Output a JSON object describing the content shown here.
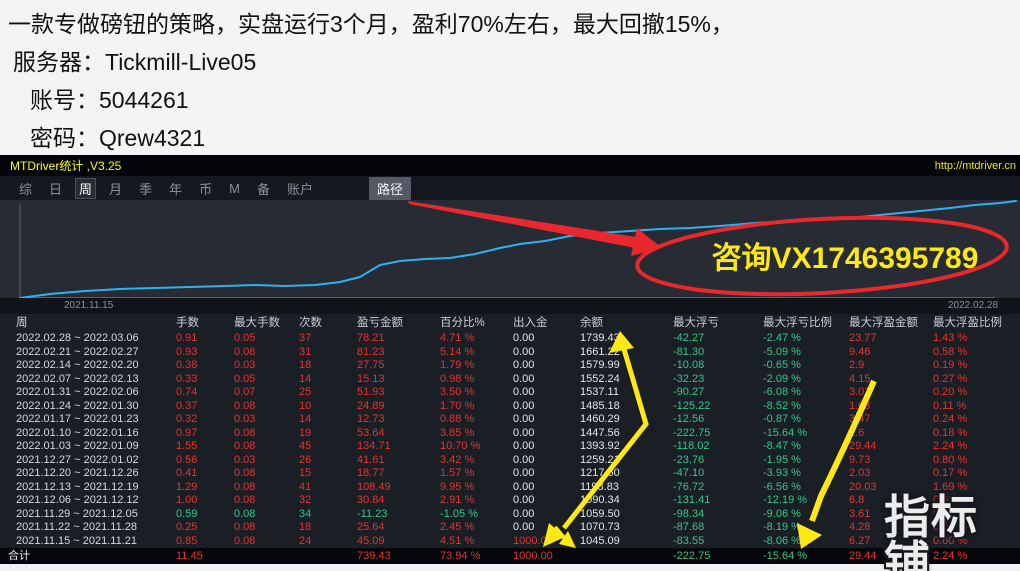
{
  "note": {
    "lines": [
      "一款专做磅钮的策略，实盘运行3个月，盈利70%左右，最大回撤15%，",
      "服务器：Tickmill-Live05",
      "账号：5044261",
      "密码：Qrew4321"
    ]
  },
  "titlebar": {
    "title": "MTDriver统计 ,V3.25",
    "url": "http://mtdriver.cn"
  },
  "menu": {
    "items": [
      "综",
      "日",
      "周",
      "月",
      "季",
      "年",
      "币",
      "M",
      "备",
      "账户"
    ],
    "selected": "周",
    "path_button": "路径"
  },
  "chart": {
    "type": "line",
    "start_date": "2021.11.15",
    "end_date": "2022.02.28",
    "annotation": "咨询VX1746395789",
    "curve_points": [
      [
        20,
        98
      ],
      [
        50,
        94
      ],
      [
        85,
        91
      ],
      [
        120,
        89
      ],
      [
        155,
        88
      ],
      [
        190,
        87
      ],
      [
        225,
        86
      ],
      [
        255,
        85
      ],
      [
        285,
        86
      ],
      [
        315,
        85
      ],
      [
        340,
        82
      ],
      [
        360,
        77
      ],
      [
        380,
        65
      ],
      [
        400,
        61
      ],
      [
        425,
        59
      ],
      [
        450,
        58
      ],
      [
        475,
        54
      ],
      [
        500,
        48
      ],
      [
        520,
        44
      ],
      [
        545,
        41
      ],
      [
        570,
        36
      ],
      [
        600,
        33
      ],
      [
        630,
        31
      ],
      [
        660,
        29
      ],
      [
        690,
        28
      ],
      [
        720,
        26
      ],
      [
        755,
        23
      ],
      [
        790,
        21
      ],
      [
        825,
        19
      ],
      [
        860,
        17
      ],
      [
        890,
        14
      ],
      [
        920,
        11
      ],
      [
        950,
        8
      ],
      [
        975,
        5
      ],
      [
        1000,
        3
      ],
      [
        1016,
        1
      ]
    ]
  },
  "table": {
    "headers": [
      "周",
      "手数",
      "最大手数",
      "次数",
      "盈亏金额",
      "百分比%",
      "出入金",
      "余额",
      "最大浮亏",
      "最大浮亏比例",
      "最大浮盈金额",
      "最大浮盈比例"
    ],
    "rows": [
      {
        "period": "2022.02.28 ~ 2022.03.06",
        "loss": false,
        "values": [
          "0.91",
          "0.05",
          "37",
          "78.21",
          "4.71 %",
          "0.00",
          "1739.43",
          "-42.27",
          "-2.47 %",
          "23.77",
          "1.43 %"
        ]
      },
      {
        "period": "2022.02.21 ~ 2022.02.27",
        "loss": false,
        "values": [
          "0.93",
          "0.08",
          "31",
          "81.23",
          "5.14 %",
          "0.00",
          "1661.22",
          "-81.30",
          "-5.09 %",
          "9.46",
          "0.58 %"
        ]
      },
      {
        "period": "2022.02.14 ~ 2022.02.20",
        "loss": false,
        "values": [
          "0.38",
          "0.03",
          "18",
          "27.75",
          "1.79 %",
          "0.00",
          "1579.99",
          "-10.08",
          "-0.65 %",
          "2.9",
          "0.19 %"
        ]
      },
      {
        "period": "2022.02.07 ~ 2022.02.13",
        "loss": false,
        "values": [
          "0.33",
          "0.05",
          "14",
          "15.13",
          "0.98 %",
          "0.00",
          "1552.24",
          "-32.23",
          "-2.09 %",
          "4.15",
          "0.27 %"
        ]
      },
      {
        "period": "2022.01.31 ~ 2022.02.06",
        "loss": false,
        "values": [
          "0.74",
          "0.07",
          "25",
          "51.93",
          "3.50 %",
          "0.00",
          "1537.11",
          "-90.27",
          "-6.08 %",
          "3.01",
          "0.20 %"
        ]
      },
      {
        "period": "2022.01.24 ~ 2022.01.30",
        "loss": false,
        "values": [
          "0.37",
          "0.08",
          "10",
          "24.89",
          "1.70 %",
          "0.00",
          "1485.18",
          "-125.22",
          "-8.52 %",
          "1.63",
          "0.11 %"
        ]
      },
      {
        "period": "2022.01.17 ~ 2022.01.23",
        "loss": false,
        "values": [
          "0.32",
          "0.03",
          "14",
          "12.73",
          "0.88 %",
          "0.00",
          "1460.29",
          "-12.56",
          "-0.87 %",
          "3.47",
          "0.24 %"
        ]
      },
      {
        "period": "2022.01.10 ~ 2022.01.16",
        "loss": false,
        "values": [
          "0.97",
          "0.08",
          "19",
          "53.64",
          "3.85 %",
          "0.00",
          "1447.56",
          "-222.75",
          "-15.64 %",
          "2.6",
          "0.18 %"
        ]
      },
      {
        "period": "2022.01.03 ~ 2022.01.09",
        "loss": false,
        "values": [
          "1.55",
          "0.08",
          "45",
          "134.71",
          "10.70 %",
          "0.00",
          "1393.92",
          "-118.02",
          "-8.47 %",
          "29.44",
          "2.24 %"
        ]
      },
      {
        "period": "2021.12.27 ~ 2022.01.02",
        "loss": false,
        "values": [
          "0.56",
          "0.03",
          "26",
          "41.61",
          "3.42 %",
          "0.00",
          "1259.21",
          "-23.76",
          "-1.95 %",
          "9.73",
          "0.80 %"
        ]
      },
      {
        "period": "2021.12.20 ~ 2021.12.26",
        "loss": false,
        "values": [
          "0.41",
          "0.08",
          "15",
          "18.77",
          "1.57 %",
          "0.00",
          "1217.60",
          "-47.10",
          "-3.93 %",
          "2.03",
          "0.17 %"
        ]
      },
      {
        "period": "2021.12.13 ~ 2021.12.19",
        "loss": false,
        "values": [
          "1.29",
          "0.08",
          "41",
          "108.49",
          "9.95 %",
          "0.00",
          "1198.83",
          "-76.72",
          "-6.56 %",
          "20.03",
          "1.69 %"
        ]
      },
      {
        "period": "2021.12.06 ~ 2021.12.12",
        "loss": false,
        "values": [
          "1.00",
          "0.08",
          "32",
          "30.84",
          "2.91 %",
          "0.00",
          "1090.34",
          "-131.41",
          "-12.19 %",
          "6.8",
          "0.63 %"
        ]
      },
      {
        "period": "2021.11.29 ~ 2021.12.05",
        "loss": true,
        "values": [
          "0.59",
          "0.08",
          "34",
          "-11.23",
          "-1.05 %",
          "0.00",
          "1059.50",
          "-98.34",
          "-9.06 %",
          "3.61",
          "0.35 %"
        ]
      },
      {
        "period": "2021.11.22 ~ 2021.11.28",
        "loss": false,
        "values": [
          "0.25",
          "0.08",
          "18",
          "25.64",
          "2.45 %",
          "0.00",
          "1070.73",
          "-87.68",
          "-8.19 %",
          "4.28",
          "0.41 %"
        ]
      },
      {
        "period": "2021.11.15 ~ 2021.11.21",
        "loss": false,
        "values": [
          "0.85",
          "0.08",
          "24",
          "45.09",
          "4.51 %",
          "1000.00",
          "1045.09",
          "-83.55",
          "-8.06 %",
          "6.27",
          "0.60 %"
        ]
      }
    ],
    "total": {
      "label": "合计",
      "values": [
        "11.45",
        "",
        "",
        "739.43",
        "73.94 %",
        "1000.00",
        "",
        "-222.75",
        "-15.64 %",
        "29.44",
        "2.24 %"
      ]
    }
  },
  "watermark": "指标铺",
  "colors": {
    "table_red": "#e6342e",
    "table_green": "#30c987",
    "curve_blue": "#2eb2ef",
    "annotation_red": "#e8282d",
    "annotation_yellow": "#ffe814",
    "title_yellow": "#ffff00"
  }
}
